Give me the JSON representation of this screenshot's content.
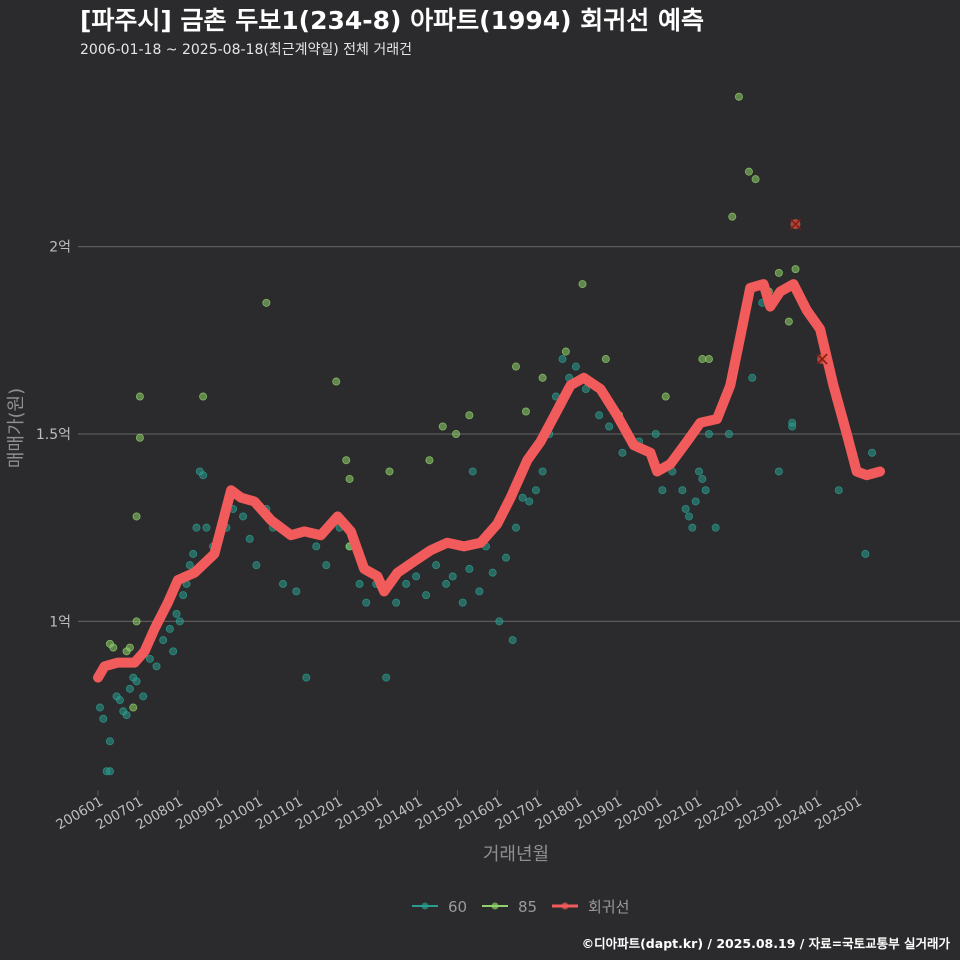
{
  "title": "[파주시] 금촌 두보1(234-8) 아파트(1994) 회귀선 예측",
  "subtitle": "2006-01-18 ~ 2025-08-18(최근계약일) 전체 거래건",
  "caption": "©디아파트(dapt.kr) / 2025.08.19 / 자료=국토교통부 실거래가",
  "colors": {
    "background": "#2b2a2c",
    "grid": "#5a5a5a",
    "series_60": "#2a9d8f",
    "series_85": "#8fd16a",
    "regression": "#f25b5b"
  },
  "chart_data": {
    "type": "scatter",
    "xlabel": "거래년월",
    "ylabel": "매매가(원)",
    "x_ticks": [
      "200601",
      "200701",
      "200801",
      "200901",
      "201001",
      "201101",
      "201201",
      "201301",
      "201401",
      "201501",
      "201601",
      "201701",
      "201801",
      "201901",
      "202001",
      "202101",
      "202201",
      "202301",
      "202401",
      "202501"
    ],
    "y_ticks": [
      {
        "value": 100000000,
        "label": "1억"
      },
      {
        "value": 150000000,
        "label": "1.5억"
      },
      {
        "value": 200000000,
        "label": "2억"
      }
    ],
    "xlim": [
      "2005-07",
      "2026-02"
    ],
    "ylim": [
      55000000,
      245000000
    ],
    "grid": true,
    "legend_position": "bottom",
    "legend": [
      {
        "name": "60",
        "color": "#2a9d8f"
      },
      {
        "name": "85",
        "color": "#8fd16a"
      },
      {
        "name": "회귀선",
        "color": "#f25b5b"
      }
    ],
    "series": [
      {
        "name": "60",
        "points": [
          [
            "2006-01",
            77000000
          ],
          [
            "2006-02",
            74000000
          ],
          [
            "2006-03",
            60000000
          ],
          [
            "2006-04",
            60000000
          ],
          [
            "2006-04",
            68000000
          ],
          [
            "2006-06",
            80000000
          ],
          [
            "2006-07",
            79000000
          ],
          [
            "2006-08",
            76000000
          ],
          [
            "2006-09",
            75000000
          ],
          [
            "2006-10",
            82000000
          ],
          [
            "2006-11",
            85000000
          ],
          [
            "2006-12",
            84000000
          ],
          [
            "2007-02",
            80000000
          ],
          [
            "2007-04",
            90000000
          ],
          [
            "2007-06",
            88000000
          ],
          [
            "2007-08",
            95000000
          ],
          [
            "2007-10",
            98000000
          ],
          [
            "2007-11",
            92000000
          ],
          [
            "2007-12",
            102000000
          ],
          [
            "2008-01",
            100000000
          ],
          [
            "2008-02",
            107000000
          ],
          [
            "2008-03",
            110000000
          ],
          [
            "2008-04",
            115000000
          ],
          [
            "2008-05",
            118000000
          ],
          [
            "2008-06",
            125000000
          ],
          [
            "2008-07",
            140000000
          ],
          [
            "2008-08",
            139000000
          ],
          [
            "2008-09",
            125000000
          ],
          [
            "2008-11",
            120000000
          ],
          [
            "2009-03",
            125000000
          ],
          [
            "2009-05",
            130000000
          ],
          [
            "2009-08",
            128000000
          ],
          [
            "2009-10",
            122000000
          ],
          [
            "2009-12",
            115000000
          ],
          [
            "2010-03",
            130000000
          ],
          [
            "2010-05",
            125000000
          ],
          [
            "2010-08",
            110000000
          ],
          [
            "2010-12",
            108000000
          ],
          [
            "2011-03",
            85000000
          ],
          [
            "2011-06",
            120000000
          ],
          [
            "2011-09",
            115000000
          ],
          [
            "2012-01",
            125000000
          ],
          [
            "2012-04",
            120000000
          ],
          [
            "2012-07",
            110000000
          ],
          [
            "2012-09",
            105000000
          ],
          [
            "2012-12",
            110000000
          ],
          [
            "2013-03",
            85000000
          ],
          [
            "2013-06",
            105000000
          ],
          [
            "2013-09",
            110000000
          ],
          [
            "2013-12",
            112000000
          ],
          [
            "2014-03",
            107000000
          ],
          [
            "2014-06",
            115000000
          ],
          [
            "2014-09",
            110000000
          ],
          [
            "2014-11",
            112000000
          ],
          [
            "2015-02",
            105000000
          ],
          [
            "2015-04",
            114000000
          ],
          [
            "2015-05",
            140000000
          ],
          [
            "2015-07",
            108000000
          ],
          [
            "2015-09",
            120000000
          ],
          [
            "2015-11",
            113000000
          ],
          [
            "2016-01",
            100000000
          ],
          [
            "2016-03",
            117000000
          ],
          [
            "2016-05",
            95000000
          ],
          [
            "2016-06",
            125000000
          ],
          [
            "2016-08",
            133000000
          ],
          [
            "2016-10",
            132000000
          ],
          [
            "2016-12",
            135000000
          ],
          [
            "2017-02",
            140000000
          ],
          [
            "2017-04",
            150000000
          ],
          [
            "2017-06",
            160000000
          ],
          [
            "2017-08",
            170000000
          ],
          [
            "2017-10",
            165000000
          ],
          [
            "2017-12",
            168000000
          ],
          [
            "2018-03",
            162000000
          ],
          [
            "2018-07",
            155000000
          ],
          [
            "2018-10",
            152000000
          ],
          [
            "2019-02",
            145000000
          ],
          [
            "2019-07",
            148000000
          ],
          [
            "2019-12",
            150000000
          ],
          [
            "2020-02",
            135000000
          ],
          [
            "2020-05",
            140000000
          ],
          [
            "2020-08",
            135000000
          ],
          [
            "2020-09",
            130000000
          ],
          [
            "2020-10",
            128000000
          ],
          [
            "2020-11",
            125000000
          ],
          [
            "2020-12",
            132000000
          ],
          [
            "2021-01",
            140000000
          ],
          [
            "2021-02",
            138000000
          ],
          [
            "2021-03",
            135000000
          ],
          [
            "2021-04",
            150000000
          ],
          [
            "2021-06",
            125000000
          ],
          [
            "2021-10",
            150000000
          ],
          [
            "2022-02",
            180000000
          ],
          [
            "2022-05",
            165000000
          ],
          [
            "2022-08",
            185000000
          ],
          [
            "2022-11",
            186000000
          ],
          [
            "2023-01",
            140000000
          ],
          [
            "2023-05",
            152000000
          ],
          [
            "2023-05",
            153000000
          ],
          [
            "2024-07",
            135000000
          ],
          [
            "2025-03",
            118000000
          ],
          [
            "2025-05",
            145000000
          ]
        ]
      },
      {
        "name": "85",
        "points": [
          [
            "2006-04",
            94000000
          ],
          [
            "2006-05",
            93000000
          ],
          [
            "2006-09",
            92000000
          ],
          [
            "2006-10",
            93000000
          ],
          [
            "2006-12",
            100000000
          ],
          [
            "2007-01",
            160000000
          ],
          [
            "2007-01",
            149000000
          ],
          [
            "2006-12",
            128000000
          ],
          [
            "2006-11",
            77000000
          ],
          [
            "2008-08",
            160000000
          ],
          [
            "2010-03",
            185000000
          ],
          [
            "2011-12",
            164000000
          ],
          [
            "2012-03",
            143000000
          ],
          [
            "2012-04",
            138000000
          ],
          [
            "2012-04",
            120000000
          ],
          [
            "2013-04",
            140000000
          ],
          [
            "2014-04",
            143000000
          ],
          [
            "2014-08",
            152000000
          ],
          [
            "2014-12",
            150000000
          ],
          [
            "2015-04",
            155000000
          ],
          [
            "2016-06",
            168000000
          ],
          [
            "2016-09",
            156000000
          ],
          [
            "2017-02",
            165000000
          ],
          [
            "2017-07",
            158000000
          ],
          [
            "2017-09",
            172000000
          ],
          [
            "2018-02",
            190000000
          ],
          [
            "2018-09",
            170000000
          ],
          [
            "2019-01",
            155000000
          ],
          [
            "2020-03",
            160000000
          ],
          [
            "2021-02",
            170000000
          ],
          [
            "2021-04",
            170000000
          ],
          [
            "2021-11",
            208000000
          ],
          [
            "2022-01",
            240000000
          ],
          [
            "2022-04",
            220000000
          ],
          [
            "2022-06",
            218000000
          ],
          [
            "2022-10",
            188000000
          ],
          [
            "2023-01",
            193000000
          ],
          [
            "2023-04",
            180000000
          ],
          [
            "2023-06",
            194000000
          ]
        ]
      },
      {
        "name": "회귀선",
        "points": [
          [
            "2006-01",
            85000000
          ],
          [
            "2006-03",
            88000000
          ],
          [
            "2006-07",
            89000000
          ],
          [
            "2006-12",
            89000000
          ],
          [
            "2007-03",
            92000000
          ],
          [
            "2007-06",
            98000000
          ],
          [
            "2007-10",
            105000000
          ],
          [
            "2008-01",
            111000000
          ],
          [
            "2008-06",
            113000000
          ],
          [
            "2008-12",
            118000000
          ],
          [
            "2009-05",
            135000000
          ],
          [
            "2009-08",
            133000000
          ],
          [
            "2009-12",
            132000000
          ],
          [
            "2010-05",
            127000000
          ],
          [
            "2010-11",
            123000000
          ],
          [
            "2011-03",
            124000000
          ],
          [
            "2011-08",
            123000000
          ],
          [
            "2012-01",
            128000000
          ],
          [
            "2012-05",
            124000000
          ],
          [
            "2012-09",
            114000000
          ],
          [
            "2013-01",
            112000000
          ],
          [
            "2013-03",
            108000000
          ],
          [
            "2013-07",
            113000000
          ],
          [
            "2013-12",
            116000000
          ],
          [
            "2014-05",
            119000000
          ],
          [
            "2014-10",
            121000000
          ],
          [
            "2015-03",
            120000000
          ],
          [
            "2015-08",
            121000000
          ],
          [
            "2016-01",
            126000000
          ],
          [
            "2016-05",
            133000000
          ],
          [
            "2016-10",
            143000000
          ],
          [
            "2017-02",
            148000000
          ],
          [
            "2017-05",
            153000000
          ],
          [
            "2017-08",
            158000000
          ],
          [
            "2017-11",
            163000000
          ],
          [
            "2018-03",
            165000000
          ],
          [
            "2018-08",
            162000000
          ],
          [
            "2019-01",
            155000000
          ],
          [
            "2019-06",
            147000000
          ],
          [
            "2019-11",
            145000000
          ],
          [
            "2020-01",
            140000000
          ],
          [
            "2020-05",
            142000000
          ],
          [
            "2020-10",
            148000000
          ],
          [
            "2021-02",
            153000000
          ],
          [
            "2021-07",
            154000000
          ],
          [
            "2021-11",
            163000000
          ],
          [
            "2022-02",
            176000000
          ],
          [
            "2022-05",
            189000000
          ],
          [
            "2022-09",
            190000000
          ],
          [
            "2022-11",
            184000000
          ],
          [
            "2023-02",
            188000000
          ],
          [
            "2023-06",
            190000000
          ],
          [
            "2023-10",
            183000000
          ],
          [
            "2024-02",
            178000000
          ],
          [
            "2024-06",
            163000000
          ],
          [
            "2024-10",
            150000000
          ],
          [
            "2025-01",
            140000000
          ],
          [
            "2025-04",
            139000000
          ],
          [
            "2025-08",
            140000000
          ]
        ]
      }
    ],
    "highlighted_points": [
      [
        "2023-06",
        206000000
      ],
      [
        "2024-02",
        170000000
      ]
    ]
  }
}
